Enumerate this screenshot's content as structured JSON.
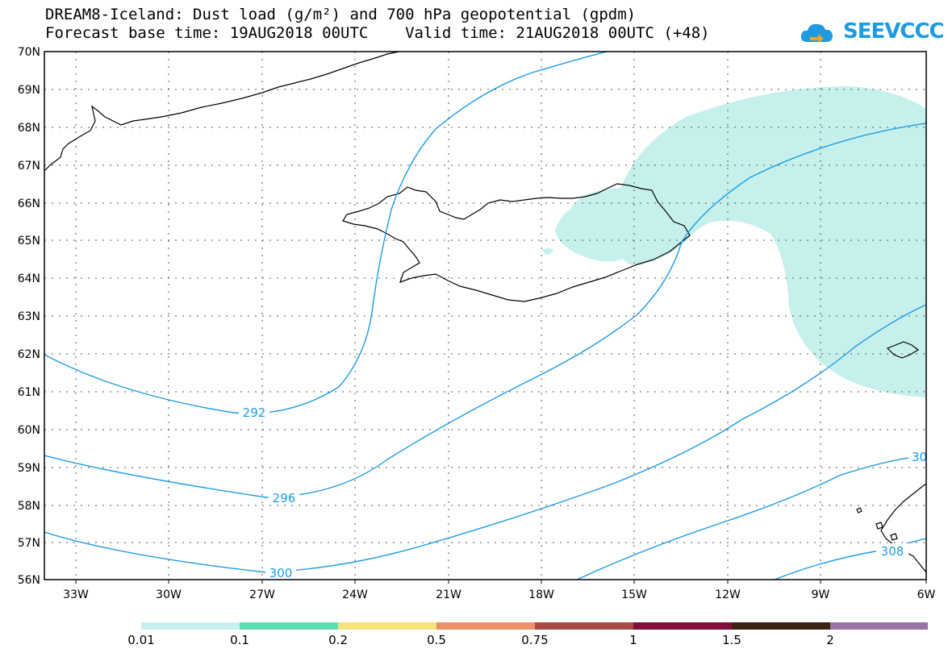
{
  "header": {
    "title_line1": "DREAM8-Iceland: Dust load (g/m²) and 700 hPa geopotential (gpdm)",
    "title_line2": "Forecast base time: 19AUG2018 00UTC    Valid time: 21AUG2018 00UTC (+48)",
    "logo_text": "SEEVCCC"
  },
  "map": {
    "lat_labels": [
      "70N",
      "69N",
      "68N",
      "67N",
      "66N",
      "65N",
      "64N",
      "63N",
      "62N",
      "61N",
      "60N",
      "59N",
      "58N",
      "57N",
      "56N"
    ],
    "lon_labels": [
      "33W",
      "30W",
      "27W",
      "24W",
      "21W",
      "18W",
      "15W",
      "12W",
      "9W",
      "6W"
    ],
    "contour_labels": [
      "292",
      "296",
      "300",
      "30",
      "308"
    ],
    "contour_color": "#1e9be0",
    "dust_color": "#c6f0ec"
  },
  "colorbar": {
    "labels": [
      "0.01",
      "0.1",
      "0.2",
      "0.5",
      "0.75",
      "1",
      "1.5",
      "2"
    ],
    "colors": [
      "#c6f0ec",
      "#5fddb2",
      "#f5e37c",
      "#ea9168",
      "#a84b45",
      "#82103a",
      "#3c2415",
      "#9a74a5"
    ]
  }
}
